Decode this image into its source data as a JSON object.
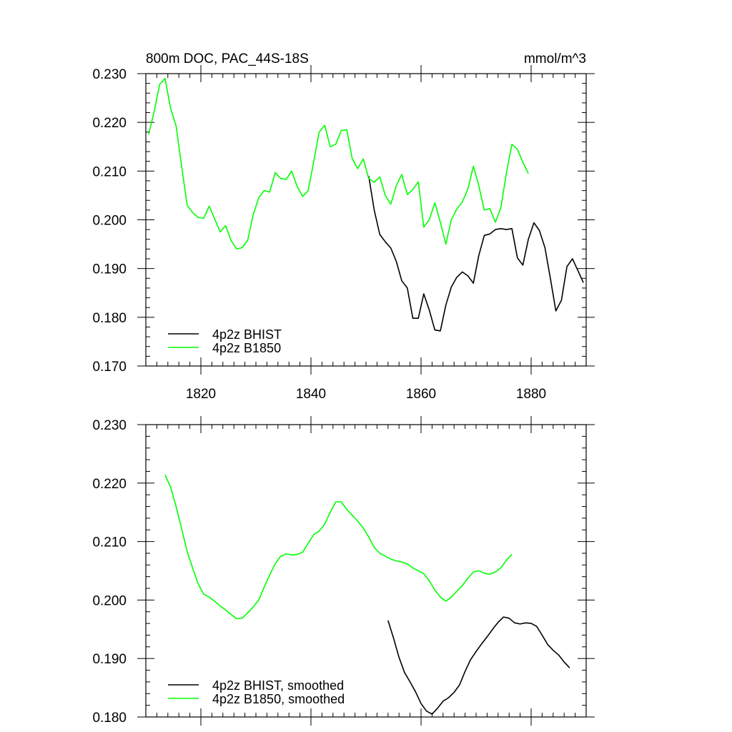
{
  "chart_data": [
    {
      "type": "line",
      "title_left": "800m DOC, PAC_44S-18S",
      "title_right": "mmol/m^3",
      "xlim": [
        1810,
        1890
      ],
      "ylim": [
        0.17,
        0.23
      ],
      "x_ticks": [
        1820,
        1840,
        1860,
        1880
      ],
      "y_ticks": [
        "0.170",
        "0.180",
        "0.190",
        "0.200",
        "0.210",
        "0.220",
        "0.230"
      ],
      "legend_position": "bottom-left",
      "series": [
        {
          "name": "4p2z BHIST",
          "color": "#000000",
          "x": [
            1850.5,
            1851.5,
            1852.5,
            1853.5,
            1854.5,
            1855.5,
            1856.5,
            1857.5,
            1858.5,
            1859.5,
            1860.5,
            1861.5,
            1862.5,
            1863.5,
            1864.5,
            1865.5,
            1866.5,
            1867.5,
            1868.5,
            1869.5,
            1870.5,
            1871.5,
            1872.5,
            1873.5,
            1874.5,
            1875.5,
            1876.5,
            1877.5,
            1878.5,
            1879.5,
            1880.5,
            1881.5,
            1882.5,
            1883.5,
            1884.5,
            1885.5,
            1886.5,
            1887.5,
            1888.5,
            1889.5
          ],
          "y": [
            0.209,
            0.202,
            0.197,
            0.1955,
            0.1942,
            0.1915,
            0.1875,
            0.186,
            0.1798,
            0.1798,
            0.1848,
            0.1815,
            0.1774,
            0.1772,
            0.1825,
            0.1862,
            0.1882,
            0.1893,
            0.1885,
            0.187,
            0.1927,
            0.1968,
            0.1971,
            0.198,
            0.1982,
            0.198,
            0.1982,
            0.1922,
            0.1907,
            0.196,
            0.1994,
            0.1978,
            0.1943,
            0.188,
            0.1813,
            0.1835,
            0.1904,
            0.192,
            0.1896,
            0.1871
          ]
        },
        {
          "name": "4p2z B1850",
          "color": "#00ff00",
          "x": [
            1810.5,
            1811.5,
            1812.5,
            1813.5,
            1814.5,
            1815.5,
            1816.5,
            1817.5,
            1818.5,
            1819.5,
            1820.5,
            1821.5,
            1822.5,
            1823.5,
            1824.5,
            1825.5,
            1826.5,
            1827.5,
            1828.5,
            1829.5,
            1830.5,
            1831.5,
            1832.5,
            1833.5,
            1834.5,
            1835.5,
            1836.5,
            1837.5,
            1838.5,
            1839.5,
            1840.5,
            1841.5,
            1842.5,
            1843.5,
            1844.5,
            1845.5,
            1846.5,
            1847.5,
            1848.5,
            1849.5,
            1850.5,
            1851.5,
            1852.5,
            1853.5,
            1854.5,
            1855.5,
            1856.5,
            1857.5,
            1858.5,
            1859.5,
            1860.5,
            1861.5,
            1862.5,
            1863.5,
            1864.5,
            1865.5,
            1866.5,
            1867.5,
            1868.5,
            1869.5,
            1870.5,
            1871.5,
            1872.5,
            1873.5,
            1874.5,
            1875.5,
            1876.5,
            1877.5,
            1878.5,
            1879.5
          ],
          "y": [
            0.2175,
            0.2222,
            0.2278,
            0.229,
            0.2228,
            0.2193,
            0.211,
            0.203,
            0.2015,
            0.2005,
            0.2003,
            0.2028,
            0.2002,
            0.1975,
            0.1988,
            0.1957,
            0.194,
            0.1943,
            0.1958,
            0.201,
            0.2045,
            0.206,
            0.2057,
            0.2097,
            0.2085,
            0.2083,
            0.21,
            0.2068,
            0.2048,
            0.206,
            0.212,
            0.218,
            0.2194,
            0.215,
            0.2155,
            0.2183,
            0.2185,
            0.2125,
            0.2105,
            0.2125,
            0.2085,
            0.2077,
            0.2088,
            0.205,
            0.2032,
            0.207,
            0.2093,
            0.2052,
            0.2062,
            0.2078,
            0.1985,
            0.2,
            0.2035,
            0.1995,
            0.195,
            0.2,
            0.2022,
            0.2037,
            0.2063,
            0.211,
            0.207,
            0.202,
            0.2023,
            0.1995,
            0.2025,
            0.2095,
            0.2155,
            0.2145,
            0.2118,
            0.2095
          ]
        }
      ]
    },
    {
      "type": "line",
      "xlim": [
        1810,
        1890
      ],
      "ylim": [
        0.18,
        0.23
      ],
      "y_ticks": [
        "0.180",
        "0.190",
        "0.200",
        "0.210",
        "0.220",
        "0.230"
      ],
      "legend_position": "bottom-left",
      "series": [
        {
          "name": "4p2z BHIST, smoothed",
          "color": "#000000",
          "x": [
            1854,
            1855,
            1856,
            1857,
            1858,
            1859,
            1860,
            1861,
            1862,
            1863,
            1864,
            1865,
            1866,
            1867,
            1868,
            1869,
            1870,
            1871,
            1872,
            1873,
            1874,
            1875,
            1876,
            1877,
            1878,
            1879,
            1880,
            1881,
            1882,
            1883,
            1884,
            1885,
            1886,
            1887
          ],
          "y": [
            0.1965,
            0.1935,
            0.1902,
            0.1876,
            0.186,
            0.1843,
            0.1823,
            0.181,
            0.1805,
            0.1815,
            0.1827,
            0.1833,
            0.1842,
            0.1855,
            0.1878,
            0.1898,
            0.1912,
            0.1925,
            0.1937,
            0.195,
            0.1962,
            0.1971,
            0.1969,
            0.1961,
            0.1959,
            0.1961,
            0.196,
            0.1955,
            0.194,
            0.1924,
            0.1914,
            0.1906,
            0.1894,
            0.1884
          ]
        },
        {
          "name": "4p2z B1850, smoothed",
          "color": "#00ff00",
          "x": [
            1813.5,
            1814.5,
            1815.5,
            1816.5,
            1817.5,
            1818.5,
            1819.5,
            1820.5,
            1821.5,
            1822.5,
            1823.5,
            1824.5,
            1825.5,
            1826.5,
            1827.5,
            1828.5,
            1829.5,
            1830.5,
            1831.5,
            1832.5,
            1833.5,
            1834.5,
            1835.5,
            1836.5,
            1837.5,
            1838.5,
            1839.5,
            1840.5,
            1841.5,
            1842.5,
            1843.5,
            1844.5,
            1845.5,
            1846.5,
            1847.5,
            1848.5,
            1849.5,
            1850.5,
            1851.5,
            1852.5,
            1853.5,
            1854.5,
            1855.5,
            1856.5,
            1857.5,
            1858.5,
            1859.5,
            1860.5,
            1861.5,
            1862.5,
            1863.5,
            1864.5,
            1865.5,
            1866.5,
            1867.5,
            1868.5,
            1869.5,
            1870.5,
            1871.5,
            1872.5,
            1873.5,
            1874.5,
            1875.5,
            1876.5
          ],
          "y": [
            0.2214,
            0.2193,
            0.216,
            0.2122,
            0.2083,
            0.2055,
            0.2028,
            0.201,
            0.2005,
            0.1998,
            0.199,
            0.1983,
            0.1975,
            0.1968,
            0.1969,
            0.1978,
            0.1988,
            0.2,
            0.2022,
            0.2043,
            0.2062,
            0.2075,
            0.2079,
            0.2077,
            0.2078,
            0.2082,
            0.2097,
            0.2112,
            0.2118,
            0.213,
            0.215,
            0.2168,
            0.2168,
            0.2155,
            0.2145,
            0.2135,
            0.2123,
            0.2108,
            0.209,
            0.208,
            0.2075,
            0.207,
            0.2067,
            0.2065,
            0.2062,
            0.2055,
            0.205,
            0.2045,
            0.2033,
            0.2017,
            0.2005,
            0.1998,
            0.2005,
            0.2015,
            0.2025,
            0.2037,
            0.2048,
            0.205,
            0.2046,
            0.2044,
            0.2048,
            0.2055,
            0.2068,
            0.2078
          ]
        }
      ]
    }
  ]
}
